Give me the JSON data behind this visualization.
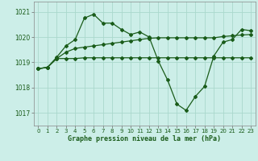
{
  "title": "Graphe pression niveau de la mer (hPa)",
  "bg_color": "#cceee8",
  "grid_color": "#aad8cc",
  "line_color": "#1a5c1a",
  "xlim": [
    -0.5,
    23.5
  ],
  "ylim": [
    1016.5,
    1021.4
  ],
  "yticks": [
    1017,
    1018,
    1019,
    1020,
    1021
  ],
  "xticks": [
    0,
    1,
    2,
    3,
    4,
    5,
    6,
    7,
    8,
    9,
    10,
    11,
    12,
    13,
    14,
    15,
    16,
    17,
    18,
    19,
    20,
    21,
    22,
    23
  ],
  "series1_x": [
    0,
    1,
    2,
    3,
    4,
    5,
    6,
    7,
    8,
    9,
    10,
    11,
    12,
    13,
    14,
    15,
    16,
    17,
    18,
    19,
    20,
    21,
    22,
    23
  ],
  "series1_y": [
    1018.75,
    1018.8,
    1019.2,
    1019.65,
    1019.9,
    1020.75,
    1020.9,
    1020.55,
    1020.55,
    1020.3,
    1020.1,
    1020.2,
    1020.0,
    1019.05,
    1018.3,
    1017.35,
    1017.1,
    1017.65,
    1018.05,
    1019.25,
    1019.8,
    1019.9,
    1020.3,
    1020.25
  ],
  "series2_x": [
    0,
    1,
    2,
    3,
    4,
    5,
    6,
    7,
    8,
    9,
    10,
    11,
    12,
    13,
    14,
    15,
    16,
    17,
    18,
    19,
    20,
    21,
    22,
    23
  ],
  "series2_y": [
    1018.75,
    1018.8,
    1019.15,
    1019.4,
    1019.55,
    1019.6,
    1019.65,
    1019.7,
    1019.75,
    1019.8,
    1019.85,
    1019.9,
    1019.95,
    1019.97,
    1019.97,
    1019.97,
    1019.97,
    1019.97,
    1019.97,
    1019.97,
    1020.02,
    1020.05,
    1020.08,
    1020.1
  ],
  "series3_x": [
    0,
    1,
    2,
    3,
    4,
    5,
    6,
    7,
    8,
    9,
    10,
    11,
    12,
    13,
    14,
    15,
    16,
    17,
    18,
    19,
    20,
    21,
    22,
    23
  ],
  "series3_y": [
    1018.75,
    1018.8,
    1019.15,
    1019.15,
    1019.15,
    1019.18,
    1019.18,
    1019.18,
    1019.18,
    1019.18,
    1019.18,
    1019.18,
    1019.18,
    1019.18,
    1019.18,
    1019.18,
    1019.18,
    1019.18,
    1019.18,
    1019.18,
    1019.18,
    1019.18,
    1019.18,
    1019.18
  ],
  "marker_size": 2.0,
  "line_width": 0.9
}
